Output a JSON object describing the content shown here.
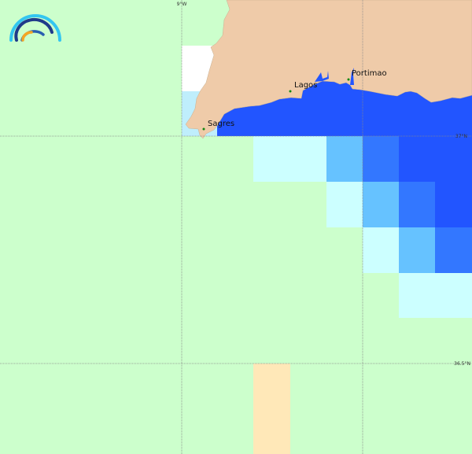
{
  "map": {
    "places": [
      {
        "name": "Sagres"
      },
      {
        "name": "Lagos"
      },
      {
        "name": "Portimao"
      }
    ],
    "graticule": {
      "lon_label": "9°W",
      "lat_labels": [
        "37°N",
        "36.5°N"
      ]
    },
    "colors": {
      "background": "#ccffcc",
      "land": "#efcba9",
      "sea_dark": "#2255ff",
      "sea_mid": "#3377ff",
      "sea_light": "#66c2ff",
      "sea_pale": "#ccffff",
      "coast_pale": "#bfeefc",
      "sand": "#ffe8b8",
      "place_dot": "#118811"
    }
  }
}
